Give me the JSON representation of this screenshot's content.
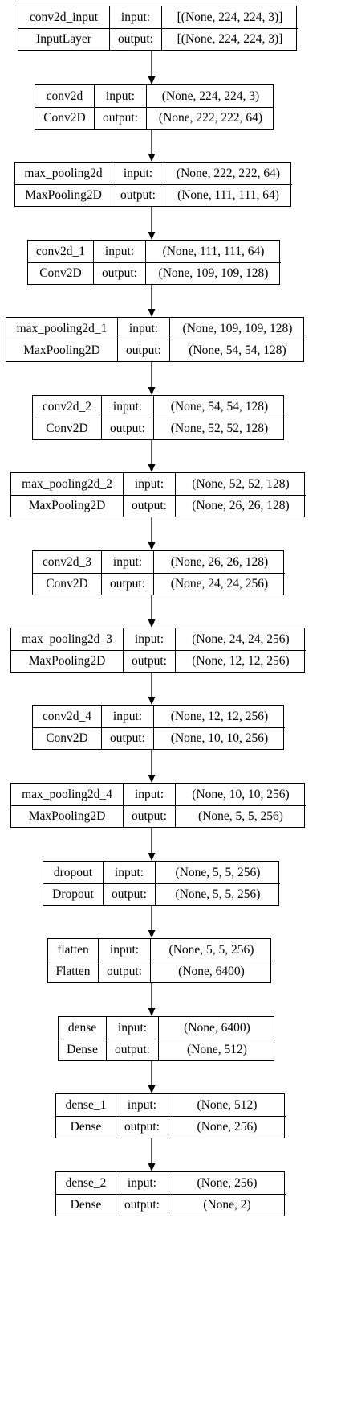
{
  "diagram": {
    "type": "keras-model-plot",
    "input_label": "input:",
    "output_label": "output:",
    "layers": [
      {
        "name": "conv2d_input",
        "class": "InputLayer",
        "input": "[(None, 224, 224, 3)]",
        "output": "[(None, 224, 224, 3)]"
      },
      {
        "name": "conv2d",
        "class": "Conv2D",
        "input": "(None, 224, 224, 3)",
        "output": "(None, 222, 222, 64)"
      },
      {
        "name": "max_pooling2d",
        "class": "MaxPooling2D",
        "input": "(None, 222, 222, 64)",
        "output": "(None, 111, 111, 64)"
      },
      {
        "name": "conv2d_1",
        "class": "Conv2D",
        "input": "(None, 111, 111, 64)",
        "output": "(None, 109, 109, 128)"
      },
      {
        "name": "max_pooling2d_1",
        "class": "MaxPooling2D",
        "input": "(None, 109, 109, 128)",
        "output": "(None, 54, 54, 128)"
      },
      {
        "name": "conv2d_2",
        "class": "Conv2D",
        "input": "(None, 54, 54, 128)",
        "output": "(None, 52, 52, 128)"
      },
      {
        "name": "max_pooling2d_2",
        "class": "MaxPooling2D",
        "input": "(None, 52, 52, 128)",
        "output": "(None, 26, 26, 128)"
      },
      {
        "name": "conv2d_3",
        "class": "Conv2D",
        "input": "(None, 26, 26, 128)",
        "output": "(None, 24, 24, 256)"
      },
      {
        "name": "max_pooling2d_3",
        "class": "MaxPooling2D",
        "input": "(None, 24, 24, 256)",
        "output": "(None, 12, 12, 256)"
      },
      {
        "name": "conv2d_4",
        "class": "Conv2D",
        "input": "(None, 12, 12, 256)",
        "output": "(None, 10, 10, 256)"
      },
      {
        "name": "max_pooling2d_4",
        "class": "MaxPooling2D",
        "input": "(None, 10, 10, 256)",
        "output": "(None, 5, 5, 256)"
      },
      {
        "name": "dropout",
        "class": "Dropout",
        "input": "(None, 5, 5, 256)",
        "output": "(None, 5, 5, 256)"
      },
      {
        "name": "flatten",
        "class": "Flatten",
        "input": "(None, 5, 5, 256)",
        "output": "(None, 6400)"
      },
      {
        "name": "dense",
        "class": "Dense",
        "input": "(None, 6400)",
        "output": "(None, 512)"
      },
      {
        "name": "dense_1",
        "class": "Dense",
        "input": "(None, 512)",
        "output": "(None, 256)"
      },
      {
        "name": "dense_2",
        "class": "Dense",
        "input": "(None, 256)",
        "output": "(None, 2)"
      }
    ]
  }
}
